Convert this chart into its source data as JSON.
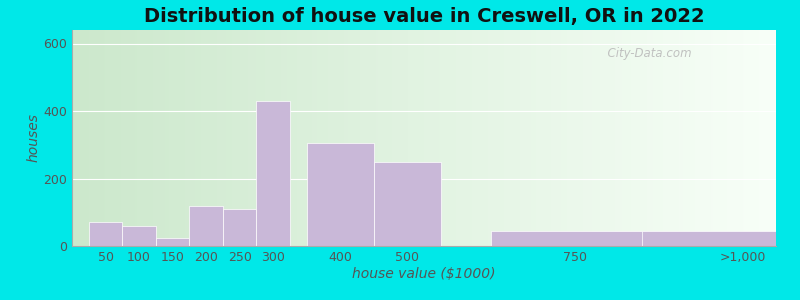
{
  "title": "Distribution of house value in Creswell, OR in 2022",
  "xlabel": "house value ($1000)",
  "ylabel": "houses",
  "bar_left_edges": [
    25,
    75,
    125,
    175,
    225,
    275,
    350,
    450,
    625,
    875
  ],
  "bar_widths": [
    50,
    50,
    50,
    50,
    50,
    50,
    100,
    100,
    250,
    250
  ],
  "bar_heights": [
    70,
    60,
    25,
    120,
    110,
    430,
    305,
    250,
    45,
    0
  ],
  "bar_color": "#c9b8d8",
  "bar_edgecolor": "#ffffff",
  "xtick_positions": [
    50,
    100,
    150,
    200,
    250,
    300,
    400,
    500,
    750,
    1000
  ],
  "xtick_labels": [
    "50",
    "100",
    "150",
    "200",
    "250",
    "300",
    "400",
    "500",
    "750",
    ">1,000"
  ],
  "ytick_positions": [
    0,
    200,
    400,
    600
  ],
  "ytick_labels": [
    "0",
    "200",
    "400",
    "600"
  ],
  "ylim": [
    0,
    640
  ],
  "xlim": [
    0,
    1050
  ],
  "bg_color_left": "#cce8cc",
  "bg_color_right": "#f0f8f0",
  "outer_bg": "#00e8e8",
  "title_fontsize": 14,
  "axis_label_fontsize": 10,
  "tick_fontsize": 9,
  "watermark_text": "  City-Data.com"
}
